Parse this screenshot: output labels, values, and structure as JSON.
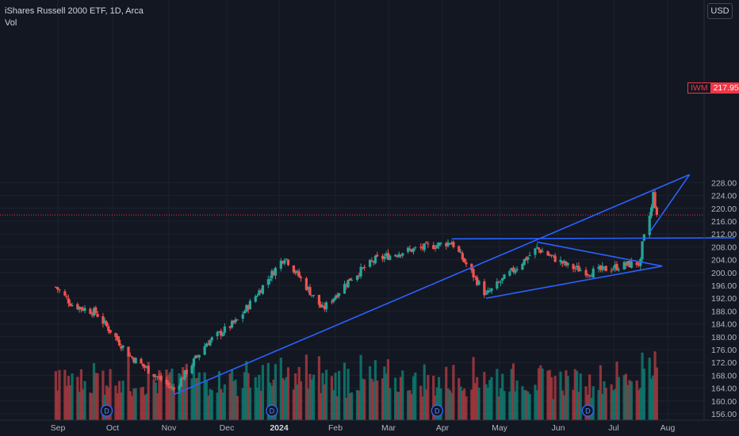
{
  "legend": {
    "title": "iShares Russell 2000 ETF, 1D, Arca",
    "indicator": "Vol"
  },
  "currency": "USD",
  "last_price": {
    "symbol": "IWM",
    "value": "217.95"
  },
  "colors": {
    "background": "#131722",
    "grid": "#1e222d",
    "up": "#26a69a",
    "down": "#ef5350",
    "up_vol": "#0f7a6e",
    "down_vol": "#a63a3f",
    "drawing": "#2962ff",
    "price_line": "#f23645",
    "axis_text": "#b2b5be"
  },
  "chart_data": {
    "type": "candlestick",
    "symbol": "IWM",
    "interval": "1D",
    "y_axis_ticks": [
      "156.00",
      "160.00",
      "164.00",
      "168.00",
      "172.00",
      "176.00",
      "180.00",
      "184.00",
      "188.00",
      "192.00",
      "196.00",
      "200.00",
      "204.00",
      "208.00",
      "212.00",
      "216.00",
      "220.00",
      "224.00",
      "228.00"
    ],
    "x_axis_ticks": [
      "Sep",
      "Oct",
      "Nov",
      "Dec",
      "2024",
      "Feb",
      "Mar",
      "Apr",
      "May",
      "Jun",
      "Jul",
      "Aug"
    ],
    "dividend_markers": [
      "D",
      "D",
      "D",
      "D"
    ],
    "key_closes": [
      {
        "date": "2023-08-23",
        "close": 195.5
      },
      {
        "date": "2023-09-01",
        "close": 190.0
      },
      {
        "date": "2023-09-14",
        "close": 187.5
      },
      {
        "date": "2023-10-03",
        "close": 174.0
      },
      {
        "date": "2023-10-27",
        "close": 163.5
      },
      {
        "date": "2023-11-14",
        "close": 178.0
      },
      {
        "date": "2023-12-01",
        "close": 185.0
      },
      {
        "date": "2023-12-27",
        "close": 205.0
      },
      {
        "date": "2024-01-17",
        "close": 188.5
      },
      {
        "date": "2024-02-01",
        "close": 198.0
      },
      {
        "date": "2024-02-15",
        "close": 204.0
      },
      {
        "date": "2024-03-01",
        "close": 206.5
      },
      {
        "date": "2024-03-28",
        "close": 209.5
      },
      {
        "date": "2024-04-16",
        "close": 193.0
      },
      {
        "date": "2024-05-14",
        "close": 207.5
      },
      {
        "date": "2024-05-31",
        "close": 202.0
      },
      {
        "date": "2024-06-12",
        "close": 200.0
      },
      {
        "date": "2024-07-03",
        "close": 202.5
      },
      {
        "date": "2024-07-10",
        "close": 203.0
      },
      {
        "date": "2024-07-11",
        "close": 208.5
      },
      {
        "date": "2024-07-16",
        "close": 220.0
      },
      {
        "date": "2024-07-17",
        "close": 224.5
      },
      {
        "date": "2024-07-19",
        "close": 217.95
      }
    ],
    "drawn_lines": [
      {
        "from": {
          "date": "2023-10-27",
          "price": 162.0
        },
        "to": {
          "date": "2024-08-06",
          "price": 230.5
        }
      },
      {
        "from": {
          "date": "2024-03-28",
          "price": 210.5
        },
        "to": {
          "date": "2024-08-31",
          "price": 210.8
        }
      },
      {
        "from": {
          "date": "2024-04-16",
          "price": 192.0
        },
        "to": {
          "date": "2024-07-22",
          "price": 202.0
        }
      },
      {
        "from": {
          "date": "2024-05-14",
          "price": 209.5
        },
        "to": {
          "date": "2024-07-22",
          "price": 202.0
        }
      },
      {
        "from": {
          "date": "2024-07-15",
          "price": 212.5
        },
        "to": {
          "date": "2024-08-06",
          "price": 230.5
        }
      }
    ],
    "current_price": 217.95
  }
}
